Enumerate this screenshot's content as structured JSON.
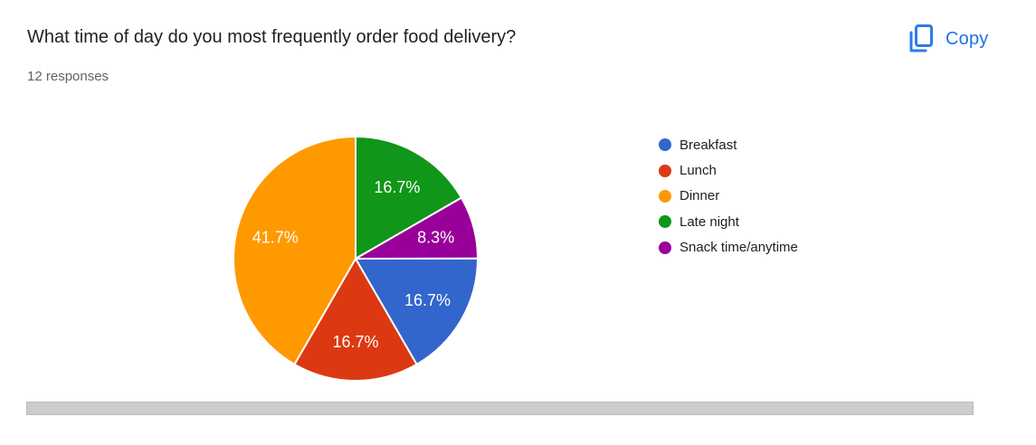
{
  "header": {
    "title": "What time of day do you most frequently order food delivery?",
    "responses": "12 responses",
    "copy_label": "Copy"
  },
  "chart_data": {
    "type": "pie",
    "title": "What time of day do you most frequently order food delivery?",
    "subtitle": "12 responses",
    "total_responses": 12,
    "legend_position": "right",
    "slices": [
      {
        "label": "Breakfast",
        "percent": 16.7,
        "display": "16.7%",
        "color": "#3366cc"
      },
      {
        "label": "Lunch",
        "percent": 16.7,
        "display": "16.7%",
        "color": "#dc3912"
      },
      {
        "label": "Dinner",
        "percent": 41.7,
        "display": "41.7%",
        "color": "#ff9900"
      },
      {
        "label": "Late night",
        "percent": 16.7,
        "display": "16.7%",
        "color": "#109618"
      },
      {
        "label": "Snack time/anytime",
        "percent": 8.3,
        "display": "8.3%",
        "color": "#990099"
      }
    ],
    "draw_order_clockwise_from_top": [
      3,
      4,
      0,
      1,
      2
    ],
    "slice_label_color": "#ffffff"
  },
  "colors": {
    "accent_blue": "#1a73e8",
    "title_text": "#202124",
    "subtitle_text": "#5f6368",
    "legend_text": "#212121",
    "slice_divider": "#ffffff",
    "scrollbar_thumb": "#cccccc",
    "background": "#ffffff"
  }
}
